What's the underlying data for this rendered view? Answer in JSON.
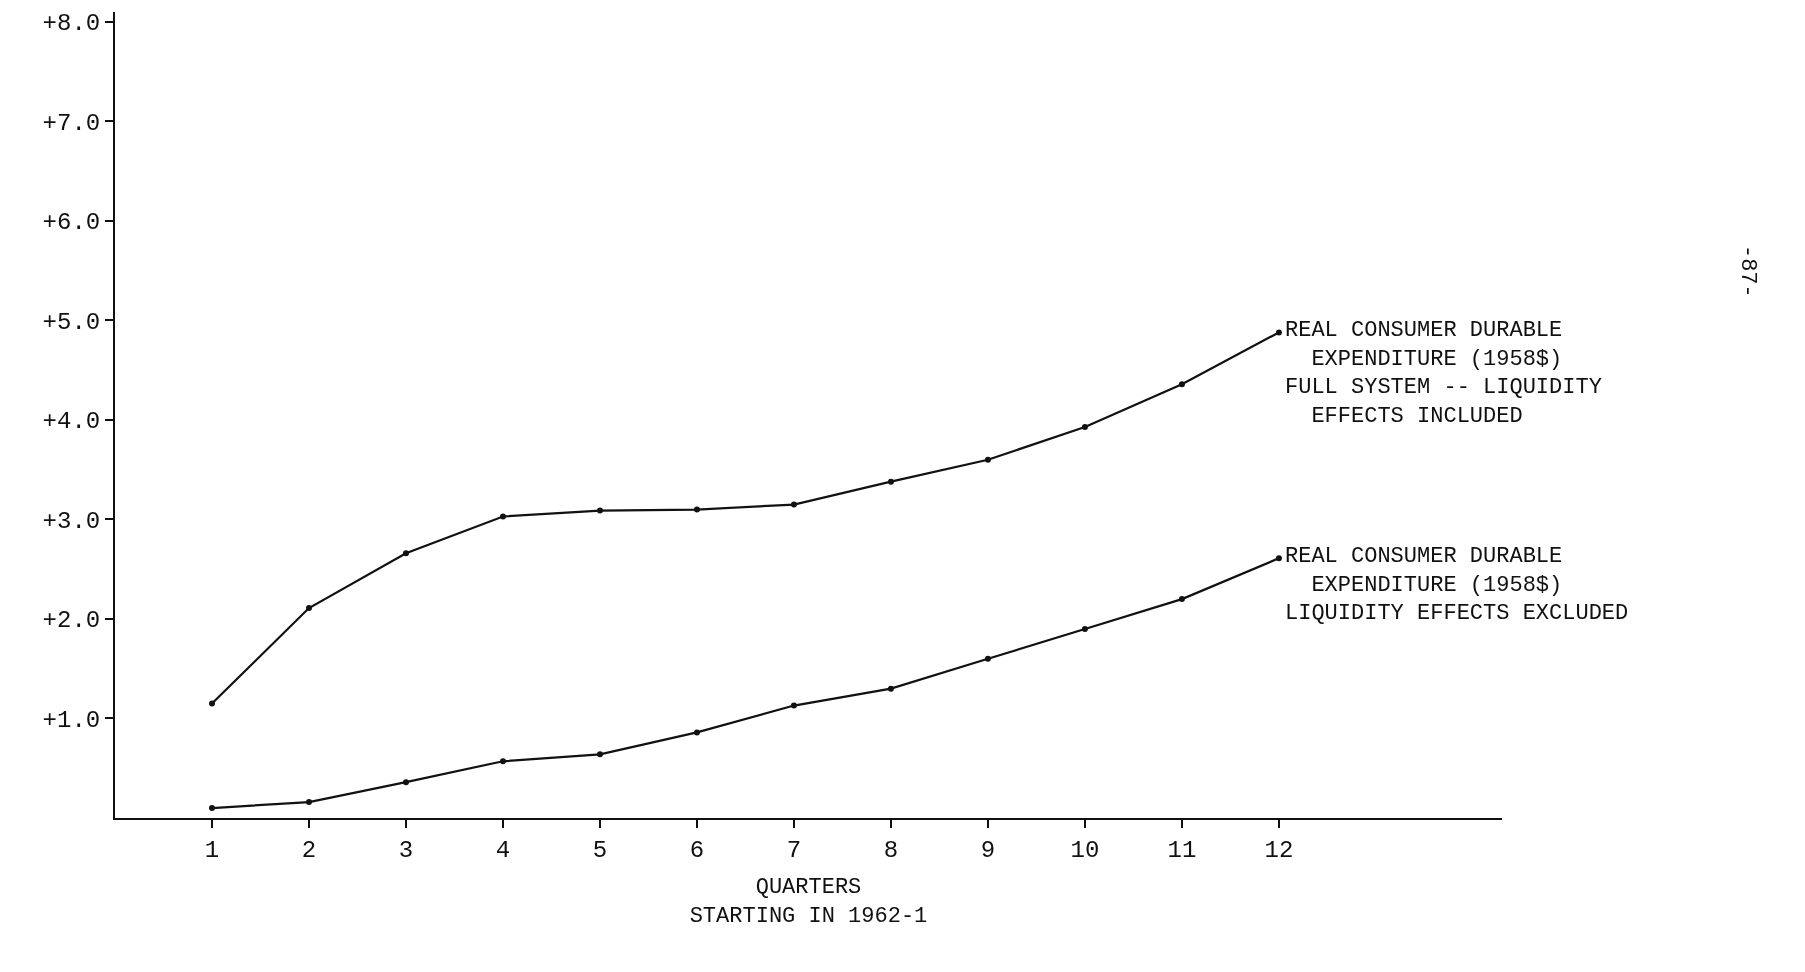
{
  "chart_data": {
    "type": "line",
    "xlabel": "QUARTERS\nSTARTING IN 1962-1",
    "x": [
      1,
      2,
      3,
      4,
      5,
      6,
      7,
      8,
      9,
      10,
      11,
      12
    ],
    "series": [
      {
        "name": "REAL CONSUMER DURABLE\n  EXPENDITURE (1958$)\nFULL SYSTEM -- LIQUIDITY\n  EFFECTS INCLUDED",
        "color": "#111111",
        "values": [
          1.15,
          2.11,
          2.66,
          3.03,
          3.09,
          3.1,
          3.15,
          3.38,
          3.6,
          3.93,
          4.36,
          4.88
        ]
      },
      {
        "name": "REAL CONSUMER DURABLE\n  EXPENDITURE (1958$)\nLIQUIDITY EFFECTS EXCLUDED",
        "color": "#111111",
        "values": [
          0.1,
          0.16,
          0.36,
          0.57,
          0.64,
          0.86,
          1.13,
          1.3,
          1.6,
          1.9,
          2.2,
          2.61
        ]
      }
    ],
    "xlim": [
      0,
      14.3
    ],
    "xticks": [
      1,
      2,
      3,
      4,
      5,
      6,
      7,
      8,
      9,
      10,
      11,
      12
    ],
    "ylim": [
      0,
      8.1
    ],
    "yticks": [
      {
        "value": 1,
        "label": "+1.0"
      },
      {
        "value": 2,
        "label": "+2.0"
      },
      {
        "value": 3,
        "label": "+3.0"
      },
      {
        "value": 4,
        "label": "+4.0"
      },
      {
        "value": 5,
        "label": "+5.0"
      },
      {
        "value": 6,
        "label": "+6.0"
      },
      {
        "value": 7,
        "label": "+7.0"
      },
      {
        "value": 8,
        "label": "+8.0"
      }
    ],
    "annotations": [
      "-87-"
    ],
    "legend": false,
    "marker": "circle",
    "line_style": "solid"
  }
}
